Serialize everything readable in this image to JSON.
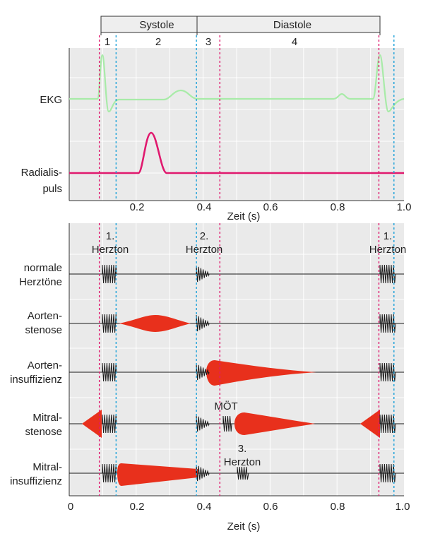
{
  "header": {
    "phases": [
      {
        "label": "Systole"
      },
      {
        "label": "Diastole"
      }
    ],
    "periods": [
      "1",
      "2",
      "3",
      "4"
    ]
  },
  "top_panel": {
    "rows": [
      {
        "lines": [
          "EKG"
        ]
      },
      {
        "lines": [
          "Radialis-",
          "puls"
        ]
      }
    ],
    "x_ticks": [
      "0.2",
      "0.4",
      "0.6",
      "0.8",
      "1.0"
    ],
    "x_label": "Zeit (s)"
  },
  "bottom_panel": {
    "rows": [
      {
        "lines": [
          "normale",
          "Herztöne"
        ]
      },
      {
        "lines": [
          "Aorten-",
          "stenose"
        ]
      },
      {
        "lines": [
          "Aorten-",
          "insuffizienz"
        ]
      },
      {
        "lines": [
          "Mitral-",
          "stenose"
        ]
      },
      {
        "lines": [
          "Mitral-",
          "insuffizienz"
        ]
      }
    ],
    "annotations": [
      {
        "lines": [
          "1.",
          "Herzton"
        ]
      },
      {
        "lines": [
          "2.",
          "Herzton"
        ]
      },
      {
        "lines": [
          "1.",
          "Herzton"
        ]
      },
      {
        "lines": [
          "MÖT"
        ]
      },
      {
        "lines": [
          "3.",
          "Herzton"
        ]
      }
    ],
    "x_ticks": [
      "0",
      "0.2",
      "0.4",
      "0.6",
      "0.8",
      "1.0"
    ],
    "x_label": "Zeit (s)"
  },
  "markers": {
    "pink_times": [
      0.09,
      0.45,
      0.925
    ],
    "blue_times": [
      0.14,
      0.38,
      0.97
    ]
  },
  "colors": {
    "panel_bg": "#eaeaea",
    "grid": "#ffffff",
    "ekg": "#a8eba8",
    "pulse": "#e0196e",
    "murmur": "#e8301c",
    "sound": "#1a1a1a",
    "marker_pink": "#e0196e",
    "marker_blue": "#1aa0d8",
    "header_bg": "#eeeeee"
  }
}
